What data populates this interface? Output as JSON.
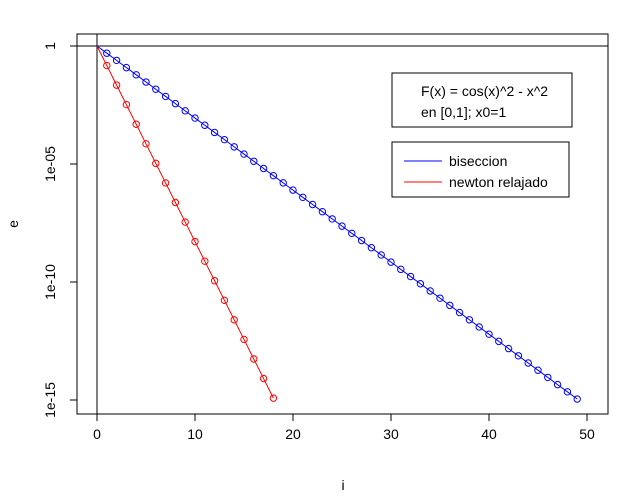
{
  "chart_data": {
    "type": "line",
    "title": "",
    "xlabel": "i",
    "ylabel": "e",
    "x_ticks": [
      "0",
      "10",
      "20",
      "30",
      "40",
      "50"
    ],
    "y_ticks": [
      "1",
      "1e-05",
      "1e-10",
      "1e-15"
    ],
    "y_scale": "log10",
    "xlim": [
      -2,
      52
    ],
    "ylim": [
      1e-16,
      10
    ],
    "grid": false,
    "reference_lines": [
      {
        "type": "vertical",
        "x": 0
      },
      {
        "type": "horizontal",
        "y": 1
      }
    ],
    "annotation": {
      "lines": [
        "F(x) = cos(x)^2 - x^2",
        "en [0,1]; x0=1"
      ]
    },
    "legend": {
      "placement": "top-right",
      "entries": [
        {
          "label": "biseccion",
          "color": "#0000ff"
        },
        {
          "label": "newton relajado",
          "color": "#ff0000"
        }
      ]
    },
    "series": [
      {
        "name": "biseccion",
        "color": "#0000ff",
        "x_start": 0,
        "x_end": 49,
        "y_start": 1,
        "y_end": 1.1e-15,
        "note_visible": "points at each integer i, log-linear decrease"
      },
      {
        "name": "newton relajado",
        "color": "#ff0000",
        "x_start": 0,
        "x_end": 18,
        "y_start": 1,
        "y_end": 1.2e-15,
        "note_visible": "points at each integer i, log-linear decrease"
      }
    ]
  }
}
